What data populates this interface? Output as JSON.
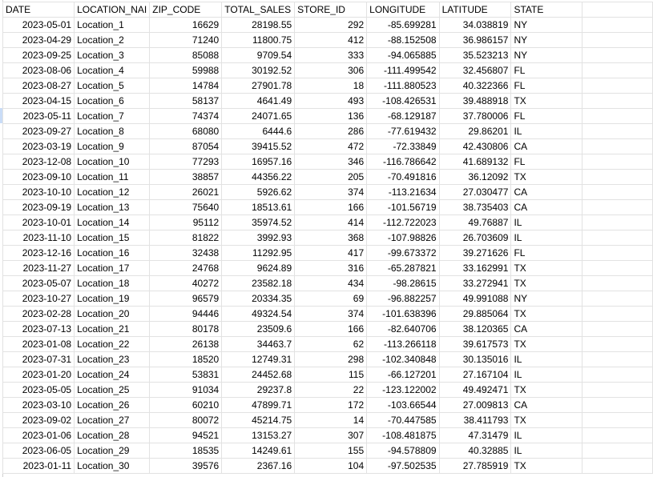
{
  "columns": [
    "DATE",
    "LOCATION_NAME",
    "ZIP_CODE",
    "TOTAL_SALES",
    "STORE_ID",
    "LONGITUDE",
    "LATITUDE",
    "STATE",
    ""
  ],
  "header_display": [
    "DATE",
    "LOCATION_NAI",
    "ZIP_CODE",
    "TOTAL_SALES",
    "STORE_ID",
    "LONGITUDE",
    "LATITUDE",
    "STATE",
    ""
  ],
  "rows": [
    [
      "2023-05-01",
      "Location_1",
      "16629",
      "28198.55",
      "292",
      "-85.699281",
      "34.038819",
      "NY"
    ],
    [
      "2023-04-29",
      "Location_2",
      "71240",
      "11800.75",
      "412",
      "-88.152508",
      "36.986157",
      "NY"
    ],
    [
      "2023-09-25",
      "Location_3",
      "85088",
      "9709.54",
      "333",
      "-94.065885",
      "35.523213",
      "NY"
    ],
    [
      "2023-08-06",
      "Location_4",
      "59988",
      "30192.52",
      "306",
      "-111.499542",
      "32.456807",
      "FL"
    ],
    [
      "2023-08-27",
      "Location_5",
      "14784",
      "27901.78",
      "18",
      "-111.880523",
      "40.322366",
      "FL"
    ],
    [
      "2023-04-15",
      "Location_6",
      "58137",
      "4641.49",
      "493",
      "-108.426531",
      "39.488918",
      "TX"
    ],
    [
      "2023-05-11",
      "Location_7",
      "74374",
      "24071.65",
      "136",
      "-68.129187",
      "37.780006",
      "FL"
    ],
    [
      "2023-09-27",
      "Location_8",
      "68080",
      "6444.6",
      "286",
      "-77.619432",
      "29.86201",
      "IL"
    ],
    [
      "2023-03-19",
      "Location_9",
      "87054",
      "39415.52",
      "472",
      "-72.33849",
      "42.430806",
      "CA"
    ],
    [
      "2023-12-08",
      "Location_10",
      "77293",
      "16957.16",
      "346",
      "-116.786642",
      "41.689132",
      "FL"
    ],
    [
      "2023-09-10",
      "Location_11",
      "38857",
      "44356.22",
      "205",
      "-70.491816",
      "36.12092",
      "TX"
    ],
    [
      "2023-10-10",
      "Location_12",
      "26021",
      "5926.62",
      "374",
      "-113.21634",
      "27.030477",
      "CA"
    ],
    [
      "2023-09-19",
      "Location_13",
      "75640",
      "18513.61",
      "166",
      "-101.56719",
      "38.735403",
      "CA"
    ],
    [
      "2023-10-01",
      "Location_14",
      "95112",
      "35974.52",
      "414",
      "-112.722023",
      "49.76887",
      "IL"
    ],
    [
      "2023-11-10",
      "Location_15",
      "81822",
      "3992.93",
      "368",
      "-107.98826",
      "26.703609",
      "IL"
    ],
    [
      "2023-12-16",
      "Location_16",
      "32438",
      "11292.95",
      "417",
      "-99.673372",
      "39.271626",
      "FL"
    ],
    [
      "2023-11-27",
      "Location_17",
      "24768",
      "9624.89",
      "316",
      "-65.287821",
      "33.162991",
      "TX"
    ],
    [
      "2023-05-07",
      "Location_18",
      "40272",
      "23582.18",
      "434",
      "-98.28615",
      "33.272941",
      "TX"
    ],
    [
      "2023-10-27",
      "Location_19",
      "96579",
      "20334.35",
      "69",
      "-96.882257",
      "49.991088",
      "NY"
    ],
    [
      "2023-02-28",
      "Location_20",
      "94446",
      "49324.54",
      "374",
      "-101.638396",
      "29.885064",
      "TX"
    ],
    [
      "2023-07-13",
      "Location_21",
      "80178",
      "23509.6",
      "166",
      "-82.640706",
      "38.120365",
      "CA"
    ],
    [
      "2023-01-08",
      "Location_22",
      "26138",
      "34463.7",
      "62",
      "-113.266118",
      "39.617573",
      "TX"
    ],
    [
      "2023-07-31",
      "Location_23",
      "18520",
      "12749.31",
      "298",
      "-102.340848",
      "30.135016",
      "IL"
    ],
    [
      "2023-01-20",
      "Location_24",
      "53831",
      "24452.68",
      "115",
      "-66.127201",
      "27.167104",
      "IL"
    ],
    [
      "2023-05-05",
      "Location_25",
      "91034",
      "29237.8",
      "22",
      "-123.122002",
      "49.492471",
      "TX"
    ],
    [
      "2023-03-10",
      "Location_26",
      "60210",
      "47899.71",
      "172",
      "-103.66544",
      "27.009813",
      "CA"
    ],
    [
      "2023-09-02",
      "Location_27",
      "80072",
      "45214.75",
      "14",
      "-70.447585",
      "38.411793",
      "TX"
    ],
    [
      "2023-01-06",
      "Location_28",
      "94521",
      "13153.27",
      "307",
      "-108.481875",
      "47.31479",
      "IL"
    ],
    [
      "2023-06-05",
      "Location_29",
      "18535",
      "14249.61",
      "155",
      "-94.578809",
      "40.32885",
      "IL"
    ],
    [
      "2023-01-11",
      "Location_30",
      "39576",
      "2367.16",
      "104",
      "-97.502535",
      "27.785919",
      "TX"
    ]
  ]
}
